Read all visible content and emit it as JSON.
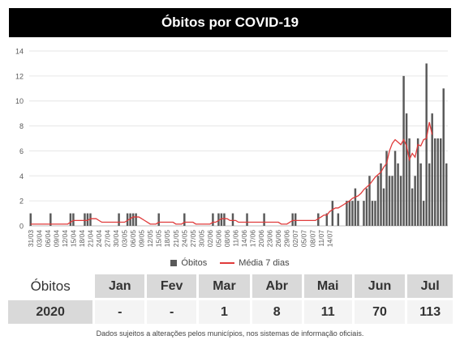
{
  "title": "Óbitos por COVID-19",
  "legend": {
    "bars": "Óbitos",
    "line": "Média 7 dias"
  },
  "colors": {
    "bars": "#595959",
    "line": "#e03a3a",
    "grid": "#e6e6e6"
  },
  "chart_data": {
    "type": "bar",
    "title": "Óbitos por COVID-19",
    "ylim": [
      0,
      14
    ],
    "yticks": [
      0,
      2,
      4,
      6,
      8,
      10,
      12,
      14
    ],
    "x_tick_labels": [
      "31/03",
      "03/04",
      "06/04",
      "09/04",
      "12/04",
      "15/04",
      "18/04",
      "21/04",
      "24/04",
      "27/04",
      "30/04",
      "03/05",
      "06/05",
      "09/05",
      "12/05",
      "15/05",
      "18/05",
      "21/05",
      "24/05",
      "27/05",
      "30/05",
      "02/06",
      "05/06",
      "08/06",
      "11/06",
      "14/06",
      "17/06",
      "20/06",
      "23/06",
      "26/06",
      "29/06",
      "02/07",
      "05/07",
      "08/07",
      "11/07",
      "14/07"
    ],
    "grid": true,
    "legend_position": "bottom",
    "series": [
      {
        "name": "Óbitos",
        "type": "bar",
        "values": [
          1,
          0,
          0,
          0,
          0,
          0,
          0,
          1,
          0,
          0,
          0,
          0,
          0,
          0,
          1,
          1,
          0,
          0,
          0,
          1,
          1,
          1,
          0,
          0,
          0,
          0,
          0,
          0,
          0,
          0,
          0,
          1,
          0,
          0,
          1,
          1,
          1,
          1,
          0,
          0,
          0,
          0,
          0,
          0,
          0,
          1,
          0,
          0,
          0,
          0,
          0,
          0,
          0,
          0,
          1,
          0,
          0,
          0,
          0,
          0,
          0,
          0,
          0,
          0,
          1,
          0,
          1,
          1,
          1,
          0,
          0,
          1,
          0,
          0,
          0,
          0,
          1,
          0,
          0,
          0,
          0,
          0,
          1,
          0,
          0,
          0,
          0,
          0,
          0,
          0,
          0,
          0,
          1,
          1,
          0,
          0,
          0,
          0,
          0,
          0,
          0,
          1,
          0,
          0,
          1,
          0,
          2,
          0,
          1,
          0,
          0,
          2,
          2,
          2,
          3,
          2,
          0,
          2,
          3,
          4,
          2,
          2,
          4,
          5,
          3,
          6,
          4,
          4,
          6,
          5,
          4,
          12,
          9,
          7,
          3,
          4,
          7,
          5,
          2,
          13,
          5,
          9,
          7,
          7,
          7,
          11,
          5
        ]
      },
      {
        "name": "Média 7 dias",
        "type": "line",
        "values": [
          0.14,
          0.14,
          0.14,
          0.14,
          0.14,
          0.14,
          0.14,
          0.14,
          0.14,
          0.14,
          0.14,
          0.14,
          0.14,
          0.14,
          0.29,
          0.43,
          0.43,
          0.43,
          0.43,
          0.43,
          0.43,
          0.57,
          0.57,
          0.57,
          0.43,
          0.29,
          0.29,
          0.29,
          0.29,
          0.29,
          0.29,
          0.29,
          0.29,
          0.29,
          0.43,
          0.57,
          0.71,
          0.71,
          0.71,
          0.57,
          0.43,
          0.29,
          0.14,
          0.14,
          0.14,
          0.29,
          0.29,
          0.29,
          0.29,
          0.29,
          0.29,
          0.14,
          0.14,
          0.14,
          0.29,
          0.29,
          0.29,
          0.29,
          0.14,
          0.14,
          0.14,
          0.14,
          0.14,
          0.14,
          0.29,
          0.29,
          0.43,
          0.57,
          0.57,
          0.57,
          0.43,
          0.43,
          0.43,
          0.29,
          0.29,
          0.29,
          0.29,
          0.29,
          0.29,
          0.29,
          0.29,
          0.29,
          0.29,
          0.29,
          0.29,
          0.29,
          0.29,
          0.29,
          0.14,
          0.14,
          0.14,
          0.29,
          0.43,
          0.43,
          0.43,
          0.43,
          0.43,
          0.43,
          0.43,
          0.43,
          0.43,
          0.57,
          0.71,
          0.86,
          0.86,
          1.14,
          1.29,
          1.43,
          1.43,
          1.57,
          1.71,
          1.86,
          2.0,
          2.2,
          2.3,
          2.4,
          2.6,
          2.9,
          3.1,
          3.3,
          3.6,
          3.9,
          4.1,
          4.3,
          4.7,
          5.0,
          6.0,
          6.6,
          6.9,
          6.7,
          6.5,
          6.9,
          6.4,
          5.3,
          5.8,
          5.5,
          6.5,
          6.4,
          6.9,
          7.0,
          8.3,
          7.3
        ]
      }
    ]
  },
  "summary": {
    "row_label": "Óbitos",
    "months": [
      "Jan",
      "Fev",
      "Mar",
      "Abr",
      "Mai",
      "Jun",
      "Jul"
    ],
    "year": "2020",
    "values": [
      "-",
      "-",
      "1",
      "8",
      "11",
      "70",
      "113"
    ]
  },
  "footnote": "Dados sujeitos a alterações pelos municípios, nos sistemas de informação oficiais."
}
